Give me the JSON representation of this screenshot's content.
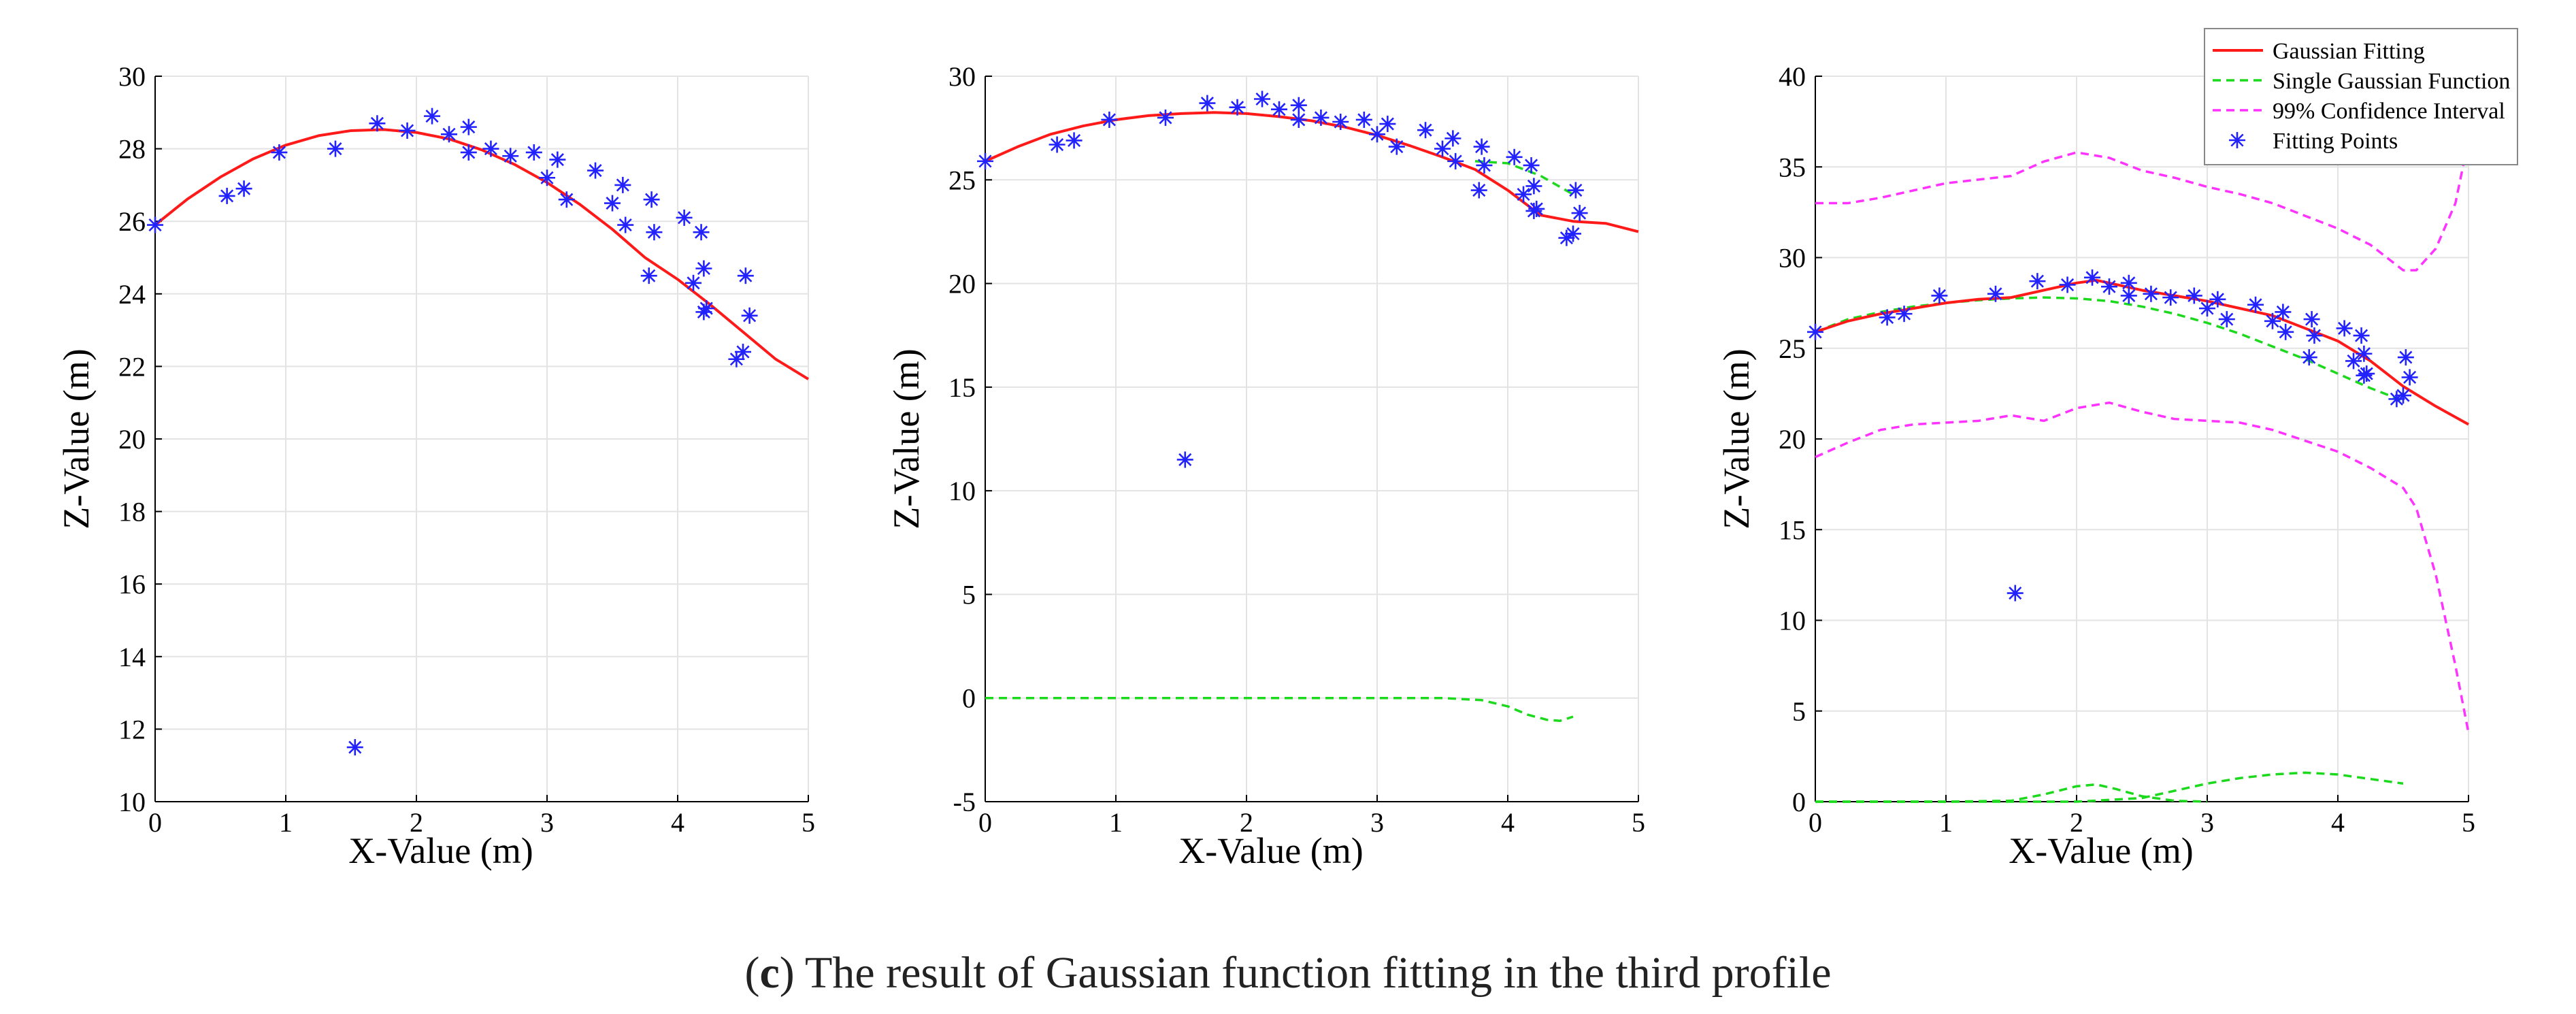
{
  "caption": {
    "open_paren": "(",
    "letter": "c",
    "close_paren": ")",
    "text": " The result of Gaussian function fitting in the third profile"
  },
  "colors": {
    "fit": "#ff1a1a",
    "single": "#1dd91d",
    "ci": "#ff33ff",
    "points": "#2222ff",
    "grid": "#e3e3e3"
  },
  "chart_data": [
    {
      "type": "line",
      "xlabel": "X-Value (m)",
      "ylabel": "Z-Value (m)",
      "xlim": [
        0,
        5
      ],
      "ylim": [
        10,
        30
      ],
      "xticks": [
        0,
        1,
        2,
        3,
        4,
        5
      ],
      "yticks": [
        10,
        12,
        14,
        16,
        18,
        20,
        22,
        24,
        26,
        28,
        30
      ],
      "grid": true,
      "series": [
        {
          "name": "Gaussian Fitting",
          "style": "fit",
          "x": [
            0,
            0.25,
            0.5,
            0.75,
            1.0,
            1.25,
            1.5,
            1.75,
            2.0,
            2.25,
            2.5,
            2.75,
            3.0,
            3.25,
            3.5,
            3.75,
            4.0,
            4.25,
            4.5,
            4.75,
            5.0
          ],
          "y": [
            25.9,
            26.62,
            27.22,
            27.72,
            28.1,
            28.36,
            28.5,
            28.53,
            28.45,
            28.27,
            27.97,
            27.57,
            27.07,
            26.47,
            25.78,
            25.0,
            24.4,
            23.7,
            22.95,
            22.2,
            21.65
          ]
        },
        {
          "name": "Fitting Points",
          "style": "points",
          "x": [
            0,
            0.55,
            0.68,
            0.95,
            1.38,
            1.53,
            1.7,
            1.93,
            2.12,
            2.25,
            2.4,
            2.4,
            2.57,
            2.72,
            2.9,
            3.0,
            3.08,
            3.15,
            3.37,
            3.5,
            3.58,
            3.6,
            3.78,
            3.8,
            3.82,
            4.05,
            4.12,
            4.18,
            4.2,
            4.2,
            4.22,
            4.45,
            4.5,
            4.52,
            4.55
          ],
          "y": [
            25.9,
            26.7,
            26.9,
            27.9,
            28.0,
            11.5,
            28.7,
            28.5,
            28.9,
            28.4,
            28.6,
            27.9,
            28.0,
            27.8,
            27.9,
            27.2,
            27.7,
            26.6,
            27.4,
            26.5,
            27.0,
            25.9,
            24.5,
            26.6,
            25.7,
            26.1,
            24.3,
            25.7,
            24.7,
            23.5,
            23.6,
            22.2,
            22.4,
            24.5,
            23.4
          ]
        }
      ]
    },
    {
      "type": "line",
      "xlabel": "X-Value (m)",
      "ylabel": "Z-Value (m)",
      "xlim": [
        0,
        5
      ],
      "ylim": [
        -5,
        30
      ],
      "xticks": [
        0,
        1,
        2,
        3,
        4,
        5
      ],
      "yticks": [
        -5,
        0,
        5,
        10,
        15,
        20,
        25,
        30
      ],
      "grid": true,
      "series": [
        {
          "name": "Gaussian Fitting",
          "style": "fit",
          "x": [
            0,
            0.25,
            0.5,
            0.75,
            1.0,
            1.25,
            1.5,
            1.75,
            2.0,
            2.25,
            2.5,
            2.75,
            3.0,
            3.25,
            3.5,
            3.75,
            4.0,
            4.25,
            4.5,
            4.75,
            5.0
          ],
          "y": [
            25.9,
            26.6,
            27.2,
            27.6,
            27.9,
            28.1,
            28.2,
            28.25,
            28.2,
            28.05,
            27.85,
            27.55,
            27.15,
            26.65,
            26.1,
            25.5,
            24.5,
            23.3,
            23.0,
            22.9,
            22.5
          ]
        },
        {
          "name": "Single Gaussian Function",
          "style": "single",
          "x": [
            3.75,
            4.0,
            4.25,
            4.5
          ],
          "y": [
            25.9,
            25.8,
            25.2,
            24.3
          ]
        },
        {
          "name": "Single Gaussian Function",
          "style": "single",
          "x": [
            0,
            0.5,
            1.0,
            1.5,
            2.0,
            2.5,
            3.0,
            3.5,
            3.8,
            4.0,
            4.15,
            4.3,
            4.4,
            4.5
          ],
          "y": [
            0,
            0,
            0,
            0,
            0,
            0,
            0,
            0,
            -0.1,
            -0.4,
            -0.8,
            -1.05,
            -1.1,
            -0.9
          ]
        },
        {
          "name": "Fitting Points",
          "style": "points",
          "x": [
            0,
            0.55,
            0.68,
            0.95,
            1.38,
            1.53,
            1.7,
            1.93,
            2.12,
            2.25,
            2.4,
            2.4,
            2.57,
            2.72,
            2.9,
            3.0,
            3.08,
            3.15,
            3.37,
            3.5,
            3.58,
            3.6,
            3.78,
            3.8,
            3.82,
            4.05,
            4.12,
            4.18,
            4.2,
            4.2,
            4.22,
            4.45,
            4.5,
            4.52,
            4.55
          ],
          "y": [
            25.9,
            26.7,
            26.9,
            27.9,
            28.0,
            11.5,
            28.7,
            28.5,
            28.9,
            28.4,
            28.6,
            27.9,
            28.0,
            27.8,
            27.9,
            27.2,
            27.7,
            26.6,
            27.4,
            26.5,
            27.0,
            25.9,
            24.5,
            26.6,
            25.7,
            26.1,
            24.3,
            25.7,
            24.7,
            23.5,
            23.6,
            22.2,
            22.4,
            24.5,
            23.4
          ]
        }
      ]
    },
    {
      "type": "line",
      "xlabel": "X-Value (m)",
      "ylabel": "Z-Value (m)",
      "xlim": [
        0,
        5
      ],
      "ylim": [
        0,
        40
      ],
      "xticks": [
        0,
        1,
        2,
        3,
        4,
        5
      ],
      "yticks": [
        0,
        5,
        10,
        15,
        20,
        25,
        30,
        35,
        40
      ],
      "grid": true,
      "legend": {
        "position": "top-right",
        "entries": [
          {
            "label": "Gaussian Fitting",
            "style": "fit"
          },
          {
            "label": "Single Gaussian Function",
            "style": "single"
          },
          {
            "label": "99% Confidence Interval",
            "style": "ci"
          },
          {
            "label": "Fitting Points",
            "style": "points"
          }
        ]
      },
      "series": [
        {
          "name": "99% Confidence Interval",
          "style": "ci",
          "x": [
            0,
            0.25,
            0.5,
            0.75,
            1.0,
            1.25,
            1.5,
            1.75,
            2.0,
            2.25,
            2.5,
            2.75,
            3.0,
            3.25,
            3.5,
            3.75,
            4.0,
            4.25,
            4.5,
            4.6,
            4.75,
            4.9,
            5.0
          ],
          "y": [
            33.0,
            33.0,
            33.3,
            33.7,
            34.1,
            34.3,
            34.5,
            35.3,
            35.8,
            35.5,
            34.8,
            34.4,
            33.9,
            33.5,
            33.0,
            32.3,
            31.6,
            30.7,
            29.3,
            29.3,
            30.5,
            33.0,
            36.5
          ]
        },
        {
          "name": "99% Confidence Interval",
          "style": "ci",
          "x": [
            0,
            0.25,
            0.5,
            0.75,
            1.0,
            1.25,
            1.5,
            1.75,
            2.0,
            2.25,
            2.5,
            2.75,
            3.0,
            3.25,
            3.5,
            3.75,
            4.0,
            4.25,
            4.5,
            4.6,
            4.75,
            4.9,
            5.0
          ],
          "y": [
            19.0,
            19.8,
            20.5,
            20.8,
            20.9,
            21.0,
            21.3,
            21.0,
            21.7,
            22.0,
            21.5,
            21.1,
            21.0,
            20.9,
            20.5,
            19.9,
            19.3,
            18.4,
            17.3,
            16.2,
            12.5,
            7.5,
            3.8
          ]
        },
        {
          "name": "Single Gaussian Function",
          "style": "single",
          "x": [
            0,
            0.25,
            0.5,
            0.75,
            1.0,
            1.25,
            1.5,
            1.75,
            2.0,
            2.25,
            2.5,
            2.75,
            3.0,
            3.25,
            3.5,
            3.75,
            4.0,
            4.25,
            4.5
          ],
          "y": [
            25.9,
            26.6,
            27.0,
            27.3,
            27.5,
            27.65,
            27.75,
            27.8,
            27.75,
            27.6,
            27.3,
            26.9,
            26.4,
            25.8,
            25.1,
            24.4,
            23.6,
            22.8,
            22.1
          ]
        },
        {
          "name": "Single Gaussian Function",
          "style": "single",
          "x": [
            0,
            0.5,
            1.0,
            1.5,
            1.75,
            2.0,
            2.15,
            2.3,
            2.5,
            2.75,
            3.0
          ],
          "y": [
            0,
            0,
            0,
            0.05,
            0.4,
            0.85,
            0.95,
            0.7,
            0.3,
            0.05,
            0
          ]
        },
        {
          "name": "Single Gaussian Function",
          "style": "single",
          "x": [
            0,
            0.5,
            1.0,
            1.5,
            2.0,
            2.5,
            2.75,
            3.0,
            3.25,
            3.5,
            3.75,
            4.0,
            4.25,
            4.5
          ],
          "y": [
            0,
            0,
            0,
            0,
            0,
            0.2,
            0.6,
            1.0,
            1.3,
            1.5,
            1.6,
            1.5,
            1.25,
            1.0
          ]
        },
        {
          "name": "Gaussian Fitting",
          "style": "fit",
          "x": [
            0,
            0.25,
            0.5,
            0.75,
            1.0,
            1.25,
            1.5,
            1.75,
            2.0,
            2.15,
            2.25,
            2.5,
            2.75,
            3.0,
            3.25,
            3.5,
            3.75,
            4.0,
            4.25,
            4.5,
            4.75,
            5.0
          ],
          "y": [
            25.9,
            26.5,
            26.9,
            27.2,
            27.5,
            27.7,
            27.8,
            28.2,
            28.6,
            28.75,
            28.6,
            28.2,
            27.9,
            27.6,
            27.2,
            26.8,
            26.1,
            25.4,
            24.3,
            22.9,
            21.8,
            20.8
          ]
        },
        {
          "name": "Fitting Points",
          "style": "points",
          "x": [
            0,
            0.55,
            0.68,
            0.95,
            1.38,
            1.53,
            1.7,
            1.93,
            2.12,
            2.25,
            2.4,
            2.4,
            2.57,
            2.72,
            2.9,
            3.0,
            3.08,
            3.15,
            3.37,
            3.5,
            3.58,
            3.6,
            3.78,
            3.8,
            3.82,
            4.05,
            4.12,
            4.18,
            4.2,
            4.2,
            4.22,
            4.45,
            4.5,
            4.52,
            4.55
          ],
          "y": [
            25.9,
            26.7,
            26.9,
            27.9,
            28.0,
            11.5,
            28.7,
            28.5,
            28.9,
            28.4,
            28.6,
            27.9,
            28.0,
            27.8,
            27.9,
            27.2,
            27.7,
            26.6,
            27.4,
            26.5,
            27.0,
            25.9,
            24.5,
            26.6,
            25.7,
            26.1,
            24.3,
            25.7,
            24.7,
            23.5,
            23.6,
            22.2,
            22.4,
            24.5,
            23.4
          ]
        }
      ]
    }
  ]
}
